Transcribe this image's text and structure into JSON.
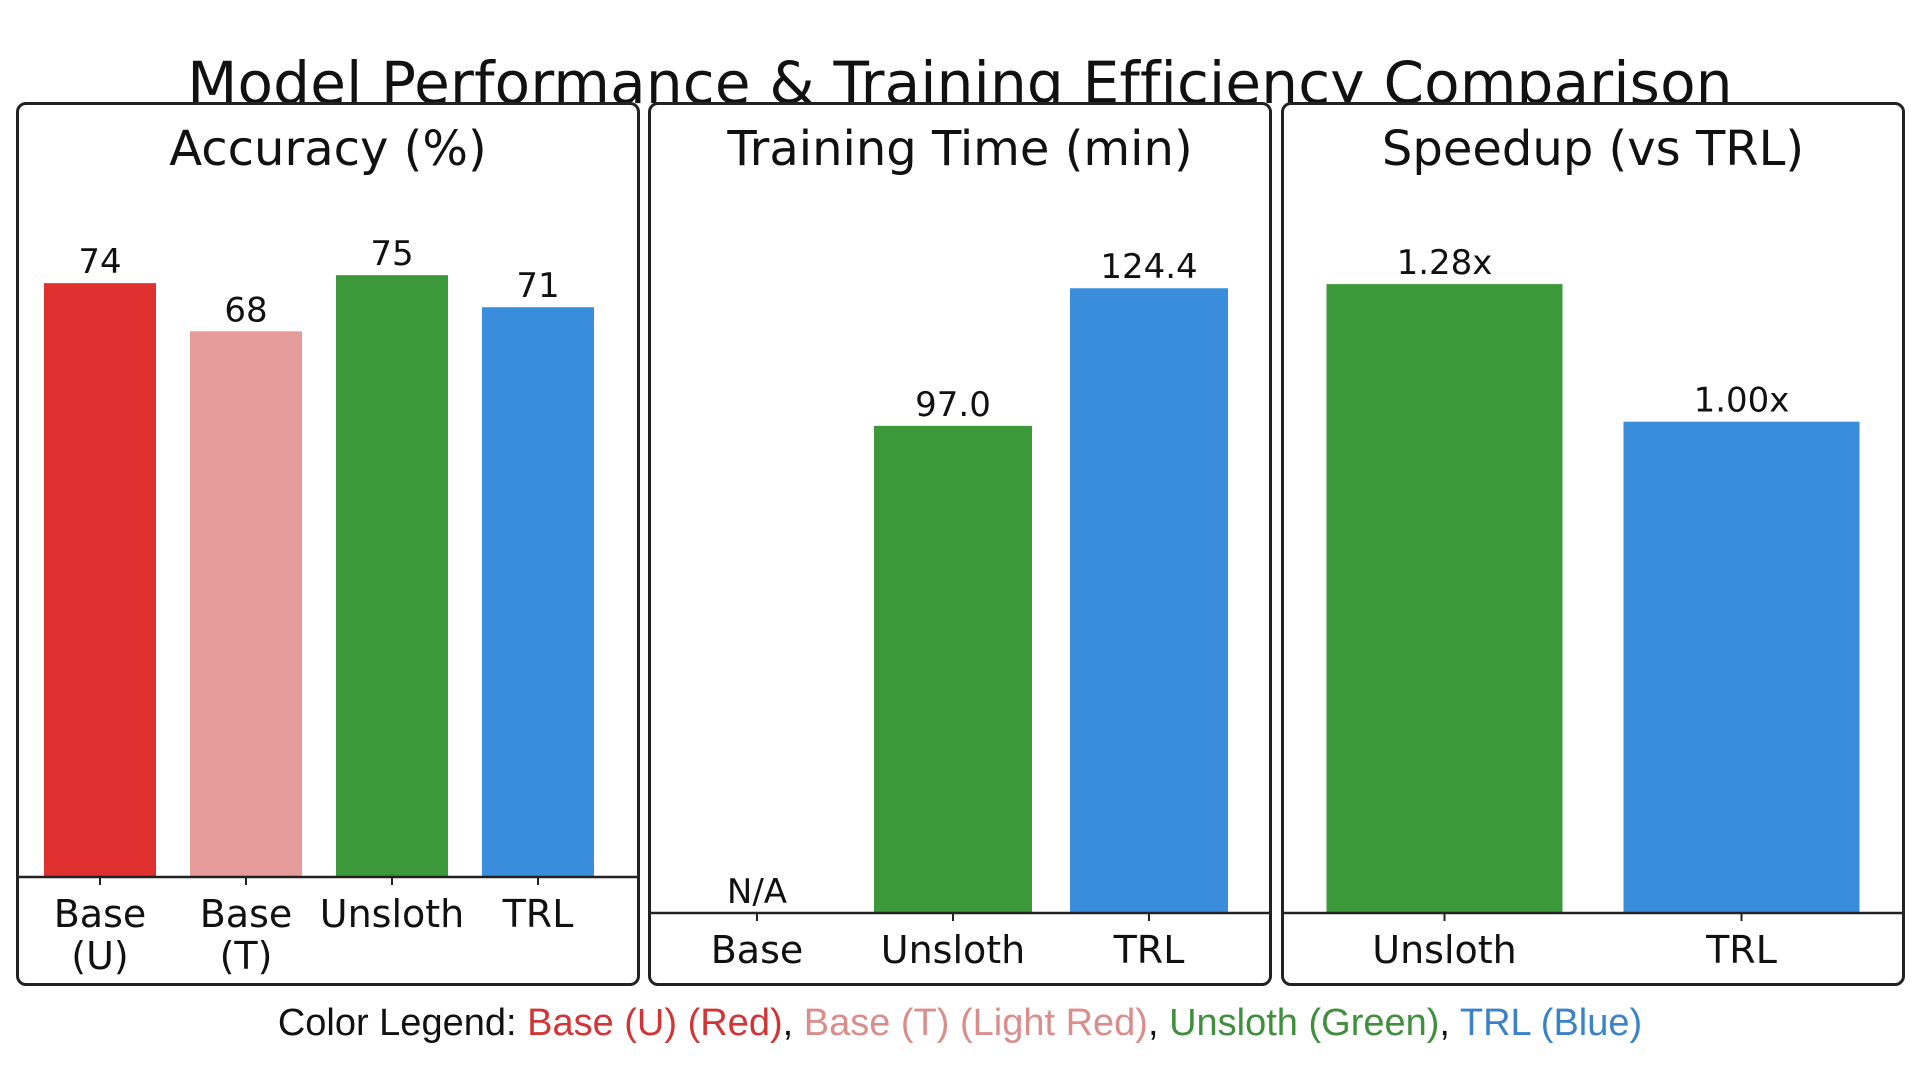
{
  "title": "Model Performance & Training Efficiency Comparison",
  "chart_data": [
    {
      "id": "accuracy",
      "type": "bar",
      "title": "Accuracy (%)",
      "categories": [
        "Base (U)",
        "Base (T)",
        "Unsloth",
        "TRL"
      ],
      "values": [
        74,
        68,
        75,
        71
      ],
      "value_labels": [
        "74",
        "68",
        "75",
        "71"
      ],
      "colors": [
        "#e0302f",
        "#e59c9a",
        "#3c9939",
        "#3a8ddb"
      ],
      "ylim": [
        0,
        80
      ],
      "xlabel": "",
      "ylabel": ""
    },
    {
      "id": "training_time",
      "type": "bar",
      "title": "Training Time (min)",
      "categories": [
        "Base",
        "Unsloth",
        "TRL"
      ],
      "values": [
        null,
        97.0,
        124.4
      ],
      "value_labels": [
        "N/A",
        "97.0",
        "124.4"
      ],
      "colors": [
        "#9e9e9e",
        "#3c9939",
        "#3a8ddb"
      ],
      "ylim": [
        0,
        135
      ],
      "xlabel": "",
      "ylabel": ""
    },
    {
      "id": "speedup",
      "type": "bar",
      "title": "Speedup (vs TRL)",
      "categories": [
        "Unsloth",
        "TRL"
      ],
      "values": [
        1.28,
        1.0
      ],
      "value_labels": [
        "1.28x",
        "1.00x"
      ],
      "colors": [
        "#3c9939",
        "#3a8ddb"
      ],
      "ylim": [
        0,
        1.38
      ],
      "xlabel": "",
      "ylabel": ""
    }
  ],
  "legend": {
    "prefix": "Color Legend: ",
    "entries": [
      {
        "label": "Base (U) (Red)",
        "color": "#d13535"
      },
      {
        "label": "Base (T) (Light Red)",
        "color": "#d98e8c"
      },
      {
        "label": "Unsloth (Green)",
        "color": "#3f8f3c"
      },
      {
        "label": "TRL (Blue)",
        "color": "#3b82c8"
      }
    ],
    "separator": ", "
  }
}
